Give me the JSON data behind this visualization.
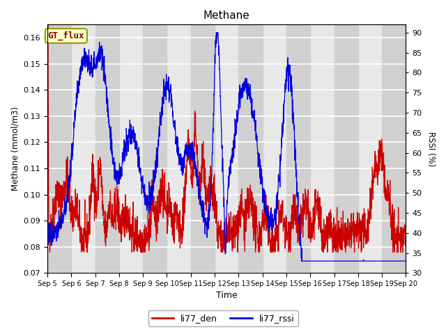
{
  "title": "Methane",
  "xlabel": "Time",
  "ylabel_left": "Methane (mmol/m3)",
  "ylabel_right": "RSSI (%)",
  "ylim_left": [
    0.07,
    0.165
  ],
  "ylim_right": [
    30,
    92
  ],
  "yticks_left": [
    0.07,
    0.08,
    0.09,
    0.1,
    0.11,
    0.12,
    0.13,
    0.14,
    0.15,
    0.16
  ],
  "yticks_right": [
    30,
    35,
    40,
    45,
    50,
    55,
    60,
    65,
    70,
    75,
    80,
    85,
    90
  ],
  "color_red": "#cc0000",
  "color_blue": "#0000dd",
  "annotation_text": "GT_flux",
  "annotation_bg": "#ffffcc",
  "annotation_border": "#999900",
  "legend_red": "li77_den",
  "legend_blue": "li77_rssi",
  "xtick_labels": [
    "Sep 5",
    "Sep 6",
    "Sep 7",
    "Sep 8",
    "Sep 9",
    "Sep 10",
    "Sep 11",
    "Sep 12",
    "Sep 13",
    "Sep 14",
    "Sep 15",
    "Sep 16",
    "Sep 17",
    "Sep 18",
    "Sep 19",
    "Sep 20"
  ],
  "plot_bg": "#e8e8e8",
  "band_color": "#d0d0d0",
  "grid_color": "#ffffff"
}
